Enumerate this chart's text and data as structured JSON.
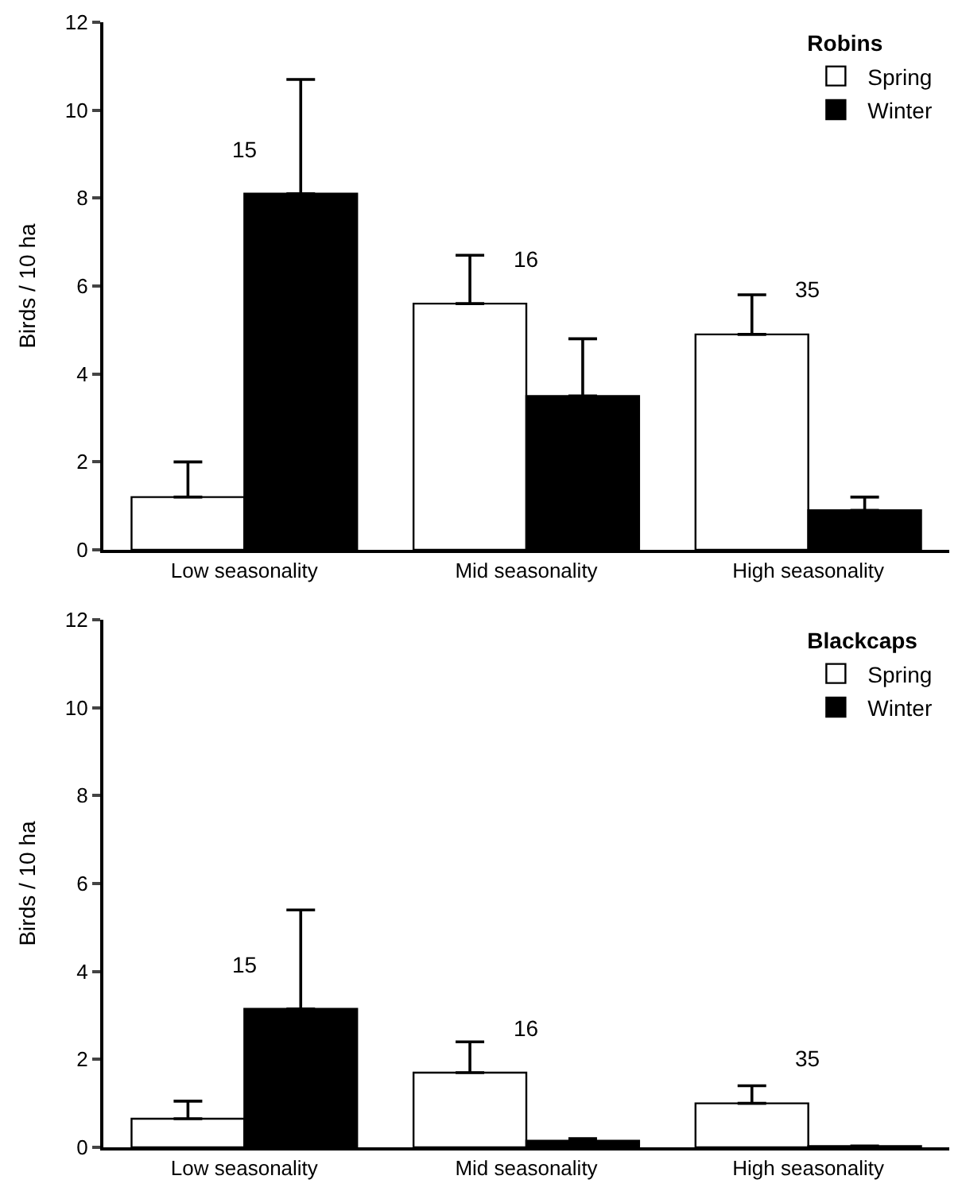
{
  "chart_data": [
    {
      "type": "bar",
      "legend_title": "Robins",
      "ylabel": "Birds / 10 ha",
      "categories": [
        "Low seasonality",
        "Mid seasonality",
        "High seasonality"
      ],
      "series": [
        {
          "name": "Spring",
          "color": "#ffffff",
          "values": [
            1.2,
            5.6,
            4.9
          ],
          "errors": [
            [
              1.2,
              2.0
            ],
            [
              5.6,
              6.7
            ],
            [
              4.9,
              5.8
            ]
          ]
        },
        {
          "name": "Winter",
          "color": "#000000",
          "values": [
            8.1,
            3.5,
            0.9
          ],
          "errors": [
            [
              8.1,
              10.7
            ],
            [
              3.5,
              4.8
            ],
            [
              0.9,
              1.2
            ]
          ]
        }
      ],
      "ylim": [
        0,
        12
      ],
      "yticks": [
        0,
        2,
        4,
        6,
        8,
        10,
        12
      ],
      "legend": "top right",
      "annotations": [
        "15",
        "16",
        "35"
      ]
    },
    {
      "type": "bar",
      "legend_title": "Blackcaps",
      "ylabel": "Birds / 10 ha",
      "categories": [
        "Low seasonality",
        "Mid seasonality",
        "High seasonality"
      ],
      "series": [
        {
          "name": "Spring",
          "color": "#ffffff",
          "values": [
            0.65,
            1.7,
            1.0
          ],
          "errors": [
            [
              0.65,
              1.05
            ],
            [
              1.7,
              2.4
            ],
            [
              1.0,
              1.4
            ]
          ]
        },
        {
          "name": "Winter",
          "color": "#000000",
          "values": [
            3.15,
            0.15,
            0.03
          ],
          "errors": [
            [
              3.15,
              5.4
            ],
            [
              0.15,
              0.2
            ],
            null
          ]
        }
      ],
      "ylim": [
        0,
        12
      ],
      "yticks": [
        0,
        2,
        4,
        6,
        8,
        10,
        12
      ],
      "legend": "top right",
      "annotations": [
        "15",
        "16",
        "35"
      ]
    }
  ]
}
